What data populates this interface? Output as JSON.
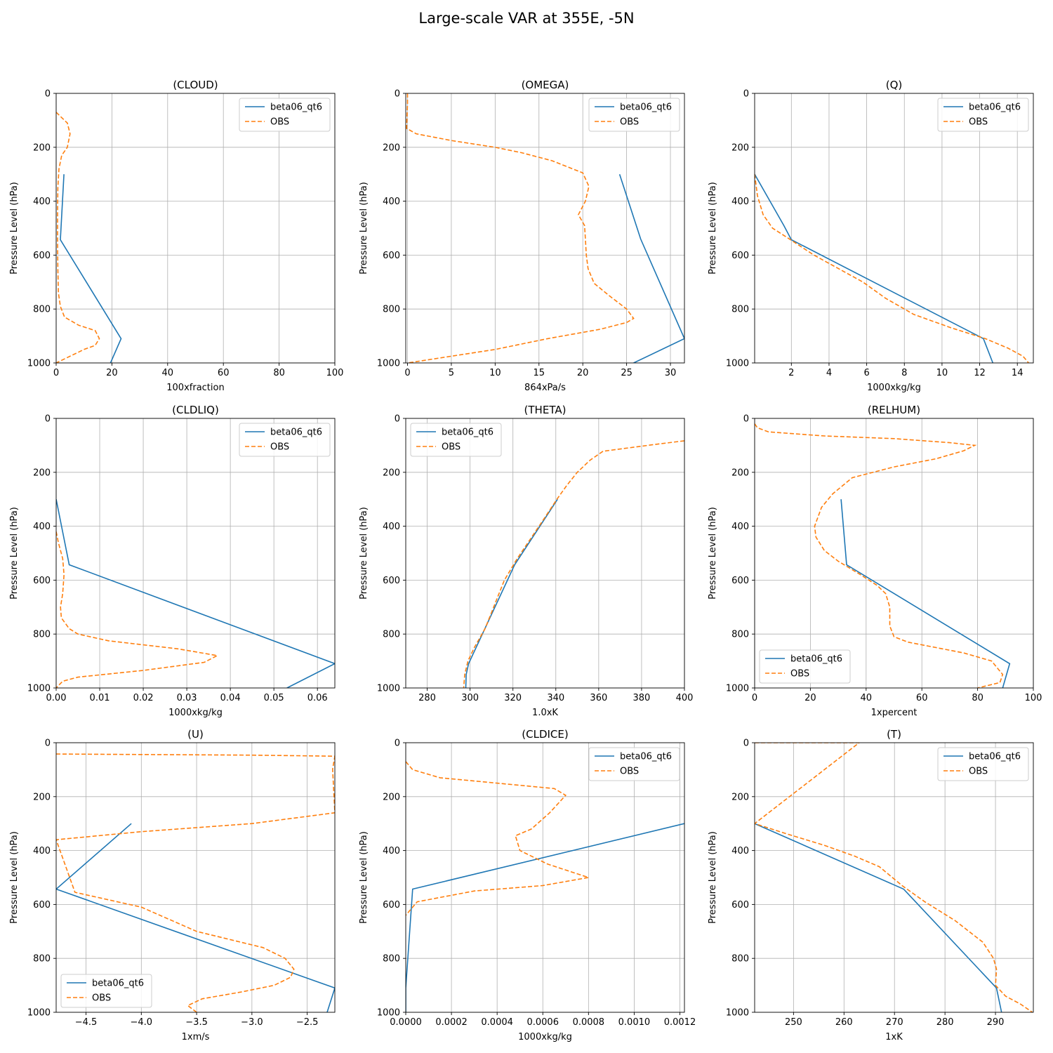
{
  "figure": {
    "title": "Large-scale VAR at 355E, -5N"
  },
  "colors": {
    "model": "#1f77b4",
    "obs": "#ff7f0e",
    "grid": "#b0b0b0"
  },
  "chart_data": [
    {
      "type": "line",
      "title": "(CLOUD)",
      "xlabel": "100xfraction",
      "ylabel": "Pressure Level (hPa)",
      "xlim": [
        0,
        100
      ],
      "ylim": [
        1000,
        0
      ],
      "legend": "upper right",
      "grid": true,
      "xticks": [
        0,
        20,
        40,
        60,
        80,
        100
      ],
      "xtick_labels": [
        "0",
        "20",
        "40",
        "60",
        "80",
        "100"
      ],
      "yticks": [
        0,
        200,
        400,
        600,
        800,
        1000
      ],
      "ytick_labels": [
        "0",
        "200",
        "400",
        "600",
        "800",
        "1000"
      ],
      "series": [
        {
          "name": "beta06_qt6",
          "style": "solid",
          "x": [
            2.8,
            1.5,
            23.3,
            19.5
          ],
          "y": [
            300,
            543,
            910,
            1000
          ]
        },
        {
          "name": "OBS",
          "style": "dashed",
          "x": [
            0,
            2,
            4,
            5,
            4,
            2,
            1,
            0.6,
            0.5,
            0.5,
            0.6,
            0.8,
            1.5,
            3,
            8,
            14,
            15.5,
            14,
            10,
            4,
            1,
            0
          ],
          "y": [
            70,
            90,
            110,
            150,
            200,
            230,
            280,
            350,
            450,
            550,
            650,
            740,
            790,
            830,
            860,
            880,
            910,
            935,
            950,
            980,
            995,
            1000
          ]
        }
      ]
    },
    {
      "type": "line",
      "title": "(OMEGA)",
      "xlabel": "864xPa/s",
      "ylabel": "Pressure Level (hPa)",
      "xlim": [
        -0.2,
        31.6
      ],
      "ylim": [
        1000,
        0
      ],
      "legend": "upper right",
      "grid": true,
      "xticks": [
        0,
        5,
        10,
        15,
        20,
        25,
        30
      ],
      "xtick_labels": [
        "0",
        "5",
        "10",
        "15",
        "20",
        "25",
        "30"
      ],
      "yticks": [
        0,
        200,
        400,
        600,
        800,
        1000
      ],
      "ytick_labels": [
        "0",
        "200",
        "400",
        "600",
        "800",
        "1000"
      ],
      "series": [
        {
          "name": "beta06_qt6",
          "style": "solid",
          "x": [
            24.2,
            26.6,
            31.6,
            25.8
          ],
          "y": [
            300,
            540,
            910,
            1000
          ]
        },
        {
          "name": "OBS",
          "style": "dashed",
          "x": [
            0,
            0,
            -0.1,
            1,
            5,
            10,
            13,
            16.5,
            20,
            20.7,
            20.3,
            19.5,
            20.2,
            20.3,
            20.4,
            20.6,
            21.3,
            23,
            25,
            25.8,
            25,
            22,
            16,
            10,
            5,
            2,
            0
          ],
          "y": [
            0,
            40,
            130,
            150,
            175,
            200,
            220,
            250,
            295,
            345,
            400,
            450,
            490,
            540,
            600,
            650,
            705,
            750,
            800,
            835,
            850,
            875,
            910,
            950,
            975,
            990,
            1000
          ]
        }
      ]
    },
    {
      "type": "line",
      "title": "(Q)",
      "xlabel": "1000xkg/kg",
      "ylabel": "Pressure Level (hPa)",
      "xlim": [
        0.05,
        14.85
      ],
      "ylim": [
        1000,
        0
      ],
      "legend": "upper right",
      "grid": true,
      "xticks": [
        2,
        4,
        6,
        8,
        10,
        12,
        14
      ],
      "xtick_labels": [
        "2",
        "4",
        "6",
        "8",
        "10",
        "12",
        "14"
      ],
      "yticks": [
        0,
        200,
        400,
        600,
        800,
        1000
      ],
      "ytick_labels": [
        "0",
        "200",
        "400",
        "600",
        "800",
        "1000"
      ],
      "series": [
        {
          "name": "beta06_qt6",
          "style": "solid",
          "x": [
            0.05,
            1.6,
            2.0,
            12.2,
            12.7
          ],
          "y": [
            300,
            490,
            543,
            910,
            1000
          ]
        },
        {
          "name": "OBS",
          "style": "dashed",
          "x": [
            0.05,
            0.2,
            0.5,
            1.0,
            2.0,
            3.2,
            4.5,
            5.8,
            7.0,
            8.5,
            10.5,
            12.3,
            13.5,
            14.3,
            14.6
          ],
          "y": [
            300,
            380,
            450,
            500,
            545,
            600,
            650,
            700,
            760,
            820,
            870,
            910,
            945,
            975,
            1000
          ]
        }
      ]
    },
    {
      "type": "line",
      "title": "(CLDLIQ)",
      "xlabel": "1000xkg/kg",
      "ylabel": "Pressure Level (hPa)",
      "xlim": [
        0,
        0.064
      ],
      "ylim": [
        1000,
        0
      ],
      "legend": "upper right",
      "grid": true,
      "xticks": [
        0,
        0.01,
        0.02,
        0.03,
        0.04,
        0.05,
        0.06
      ],
      "xtick_labels": [
        "0.00",
        "0.01",
        "0.02",
        "0.03",
        "0.04",
        "0.05",
        "0.06"
      ],
      "yticks": [
        0,
        200,
        400,
        600,
        800,
        1000
      ],
      "ytick_labels": [
        "0",
        "200",
        "400",
        "600",
        "800",
        "1000"
      ],
      "series": [
        {
          "name": "beta06_qt6",
          "style": "solid",
          "x": [
            0,
            0.003,
            0.064,
            0.053
          ],
          "y": [
            300,
            543,
            910,
            1000
          ]
        },
        {
          "name": "OBS",
          "style": "dashed",
          "x": [
            0,
            0.0005,
            0.0015,
            0.0018,
            0.0015,
            0.001,
            0.0012,
            0.003,
            0.005,
            0.012,
            0.028,
            0.037,
            0.034,
            0.02,
            0.005,
            0.0015,
            0
          ],
          "y": [
            420,
            460,
            520,
            580,
            650,
            700,
            740,
            780,
            800,
            825,
            855,
            880,
            905,
            935,
            960,
            975,
            1000
          ]
        }
      ]
    },
    {
      "type": "line",
      "title": "(THETA)",
      "xlabel": "1.0xK",
      "ylabel": "Pressure Level (hPa)",
      "xlim": [
        270,
        400
      ],
      "ylim": [
        1000,
        0
      ],
      "legend": "upper left",
      "grid": true,
      "xticks": [
        280,
        300,
        320,
        340,
        360,
        380,
        400
      ],
      "xtick_labels": [
        "280",
        "300",
        "320",
        "340",
        "360",
        "380",
        "400"
      ],
      "yticks": [
        0,
        200,
        400,
        600,
        800,
        1000
      ],
      "ytick_labels": [
        "0",
        "200",
        "400",
        "600",
        "800",
        "1000"
      ],
      "series": [
        {
          "name": "beta06_qt6",
          "style": "solid",
          "x": [
            340.8,
            320.8,
            299.3,
            298.2,
            298.0
          ],
          "y": [
            300,
            543,
            910,
            950,
            1000
          ]
        },
        {
          "name": "OBS",
          "style": "dashed",
          "x": [
            400,
            385,
            362,
            356,
            350,
            345,
            340.5,
            333,
            322,
            316,
            313,
            310,
            307,
            302,
            299,
            297.5,
            297
          ],
          "y": [
            83,
            98,
            122,
            155,
            200,
            250,
            300,
            390,
            520,
            600,
            660,
            720,
            780,
            850,
            900,
            950,
            1000
          ]
        }
      ]
    },
    {
      "type": "line",
      "title": "(RELHUM)",
      "xlabel": "1xpercent",
      "ylabel": "Pressure Level (hPa)",
      "xlim": [
        0,
        100
      ],
      "ylim": [
        1000,
        0
      ],
      "legend": "lower left",
      "grid": true,
      "xticks": [
        0,
        20,
        40,
        60,
        80,
        100
      ],
      "xtick_labels": [
        "0",
        "20",
        "40",
        "60",
        "80",
        "100"
      ],
      "yticks": [
        0,
        200,
        400,
        600,
        800,
        1000
      ],
      "ytick_labels": [
        "0",
        "200",
        "400",
        "600",
        "800",
        "1000"
      ],
      "series": [
        {
          "name": "beta06_qt6",
          "style": "solid",
          "x": [
            31,
            33,
            91.5,
            89
          ],
          "y": [
            300,
            543,
            910,
            1000
          ]
        },
        {
          "name": "OBS",
          "style": "dashed",
          "x": [
            0,
            1,
            5,
            25,
            50,
            70,
            79,
            75,
            65,
            50,
            35,
            28,
            24,
            21.5,
            22,
            25,
            30,
            38,
            44,
            47,
            48.5,
            48.5,
            50,
            55,
            65,
            75,
            85,
            89,
            88,
            80
          ],
          "y": [
            20,
            35,
            50,
            65,
            75,
            90,
            100,
            120,
            150,
            180,
            220,
            280,
            330,
            400,
            440,
            490,
            530,
            580,
            620,
            650,
            700,
            770,
            810,
            830,
            850,
            870,
            900,
            950,
            980,
            1000
          ]
        }
      ]
    },
    {
      "type": "line",
      "title": "(U)",
      "xlabel": "1xm/s",
      "ylabel": "Pressure Level (hPa)",
      "xlim": [
        -4.77,
        -2.25
      ],
      "ylim": [
        1000,
        0
      ],
      "legend": "lower left",
      "grid": true,
      "xticks": [
        -4.5,
        -4.0,
        -3.5,
        -3.0,
        -2.5
      ],
      "xtick_labels": [
        "−4.5",
        "−4.0",
        "−3.5",
        "−3.0",
        "−2.5"
      ],
      "yticks": [
        0,
        200,
        400,
        600,
        800,
        1000
      ],
      "ytick_labels": [
        "0",
        "200",
        "400",
        "600",
        "800",
        "1000"
      ],
      "series": [
        {
          "name": "beta06_qt6",
          "style": "solid",
          "x": [
            -4.09,
            -4.77,
            -2.25,
            -2.32
          ],
          "y": [
            300,
            543,
            910,
            1000
          ]
        },
        {
          "name": "OBS",
          "style": "dashed",
          "x": [
            -4.77,
            -3.0,
            -2.25,
            -2.27,
            -2.25,
            -3.0,
            -4.0,
            -4.77,
            -4.6,
            -4.0,
            -3.5,
            -2.9,
            -2.7,
            -2.62,
            -2.65,
            -2.8,
            -3.1,
            -3.45,
            -3.58,
            -3.5
          ],
          "y": [
            42,
            46,
            50,
            98,
            260,
            300,
            330,
            360,
            555,
            610,
            700,
            760,
            800,
            840,
            870,
            900,
            925,
            950,
            975,
            1000
          ]
        }
      ]
    },
    {
      "type": "line",
      "title": "(CLDICE)",
      "xlabel": "1000xkg/kg",
      "ylabel": "Pressure Level (hPa)",
      "xlim": [
        0,
        0.00122
      ],
      "ylim": [
        1000,
        0
      ],
      "legend": "upper right",
      "grid": true,
      "xticks": [
        0,
        0.0002,
        0.0004,
        0.0006,
        0.0008,
        0.001,
        0.0012
      ],
      "xtick_labels": [
        "0.0000",
        "0.0002",
        "0.0004",
        "0.0006",
        "0.0008",
        "0.0010",
        "0.0012"
      ],
      "yticks": [
        0,
        200,
        400,
        600,
        800,
        1000
      ],
      "ytick_labels": [
        "0",
        "200",
        "400",
        "600",
        "800",
        "1000"
      ],
      "series": [
        {
          "name": "beta06_qt6",
          "style": "solid",
          "x": [
            0.00122,
            3e-05,
            0,
            0
          ],
          "y": [
            300,
            543,
            910,
            1000
          ]
        },
        {
          "name": "OBS",
          "style": "dashed",
          "x": [
            0,
            3e-05,
            0.00015,
            0.0004,
            0.00065,
            0.0007,
            0.00063,
            0.00055,
            0.00048,
            0.0005,
            0.00062,
            0.0008,
            0.0006,
            0.0003,
            5e-05,
            0
          ],
          "y": [
            70,
            100,
            130,
            150,
            170,
            195,
            260,
            320,
            345,
            400,
            450,
            500,
            530,
            550,
            590,
            640
          ]
        }
      ]
    },
    {
      "type": "line",
      "title": "(T)",
      "xlabel": "1xK",
      "ylabel": "Pressure Level (hPa)",
      "xlim": [
        242.3,
        297.5
      ],
      "ylim": [
        1000,
        0
      ],
      "legend": "upper right",
      "grid": true,
      "xticks": [
        250,
        260,
        270,
        280,
        290
      ],
      "xtick_labels": [
        "250",
        "260",
        "270",
        "280",
        "290"
      ],
      "yticks": [
        0,
        200,
        400,
        600,
        800,
        1000
      ],
      "ytick_labels": [
        "0",
        "200",
        "400",
        "600",
        "800",
        "1000"
      ],
      "series": [
        {
          "name": "beta06_qt6",
          "style": "solid",
          "x": [
            242.3,
            271.8,
            290.2,
            291.2
          ],
          "y": [
            300,
            543,
            910,
            1000
          ]
        },
        {
          "name": "OBS",
          "style": "dashed",
          "x": [
            242.3,
            263,
            242.3,
            249,
            256,
            262,
            267,
            271.5,
            276,
            282,
            287.5,
            289.6,
            290.2,
            290,
            292,
            295,
            297.3
          ],
          "y": [
            0,
            0,
            300,
            340,
            380,
            420,
            460,
            530,
            590,
            660,
            740,
            800,
            840,
            900,
            940,
            970,
            1000
          ]
        }
      ]
    }
  ]
}
